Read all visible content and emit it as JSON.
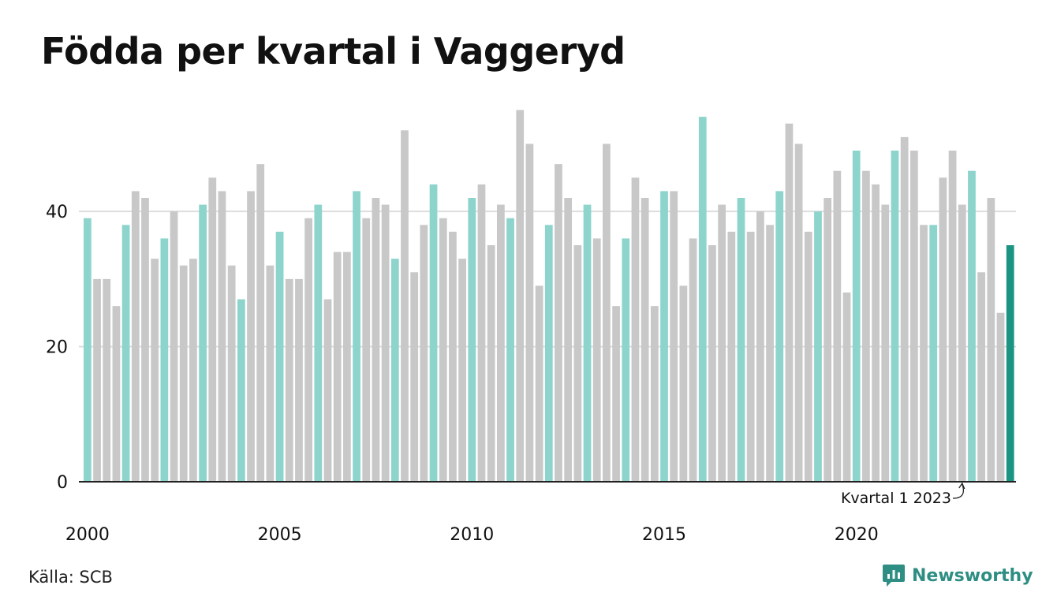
{
  "title": "Födda per kvartal i Vaggeryd",
  "source": "Källa: SCB",
  "brand": "Newsworthy",
  "colors": {
    "q1": "#8dd4cd",
    "other": "#c8c8c8",
    "latest": "#1b9483",
    "grid": "#dddddd",
    "axis": "#222222",
    "text": "#111111",
    "brand": "#2e8e83"
  },
  "chart_data": {
    "type": "bar",
    "title": "Födda per kvartal i Vaggeryd",
    "xlabel": "",
    "ylabel": "",
    "ylim": [
      0,
      56
    ],
    "yticks": [
      0,
      20,
      40
    ],
    "grid": true,
    "x_tick_labels": [
      "2000",
      "2005",
      "2010",
      "2015",
      "2020"
    ],
    "first_year": 2000,
    "highlight": "Q1 bars in light teal; latest bar (Kvartal 1 2023) in dark teal",
    "annotation": "Kvartal 1 2023",
    "values": [
      39,
      30,
      30,
      26,
      38,
      43,
      42,
      33,
      36,
      40,
      32,
      33,
      41,
      45,
      43,
      32,
      27,
      43,
      47,
      32,
      37,
      30,
      30,
      39,
      41,
      27,
      34,
      34,
      43,
      39,
      42,
      41,
      33,
      52,
      31,
      38,
      44,
      39,
      37,
      33,
      42,
      44,
      35,
      41,
      39,
      55,
      50,
      29,
      38,
      47,
      42,
      35,
      41,
      36,
      50,
      26,
      36,
      45,
      42,
      26,
      43,
      43,
      29,
      36,
      54,
      35,
      41,
      37,
      42,
      37,
      40,
      38,
      43,
      53,
      50,
      37,
      40,
      42,
      46,
      28,
      49,
      46,
      44,
      41,
      49,
      51,
      49,
      38,
      38,
      45,
      49,
      41,
      46,
      31,
      42,
      25,
      35
    ]
  }
}
